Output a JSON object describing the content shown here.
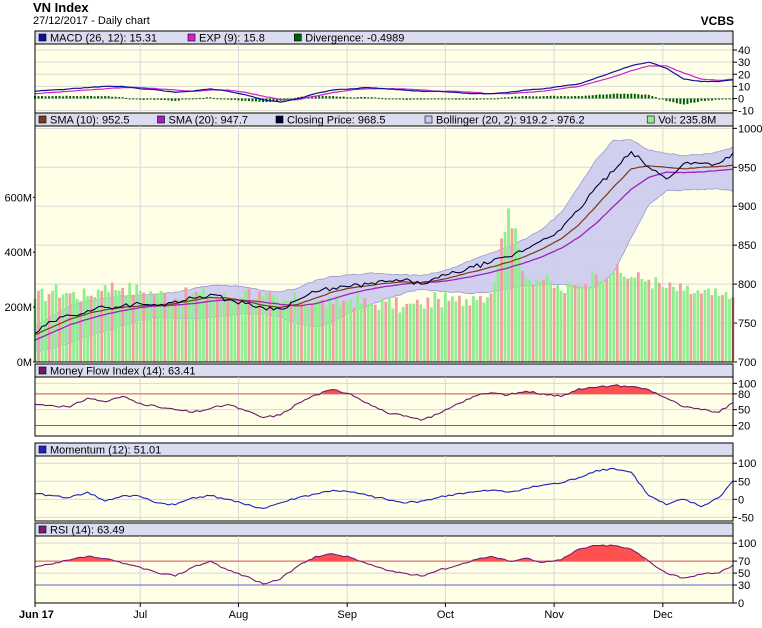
{
  "header": {
    "title": "VN Index",
    "subtitle": "27/12/2017 - Daily chart",
    "broker": "VCBS"
  },
  "colors": {
    "plot_bg": "#ffffe8",
    "legend_bg": "#dcdcf0",
    "price_line": "#000033",
    "sma10": "#7a3a1a",
    "sma20": "#a020c0",
    "bollinger_fill": "#c8c8f0",
    "bollinger_edge": "#8888cc",
    "macd": "#1010a0",
    "exp": "#d020d0",
    "divergence": "#006000",
    "mfi": "#6a1a6a",
    "momentum": "#2020c0",
    "rsi": "#7a1a7a",
    "overbought_fill": "#ff5050",
    "ref_line_upper": "#e05050",
    "ref_line_lower": "#6060d0",
    "vol_up": "#90ee90",
    "vol_down": "#f0a0a0"
  },
  "chart_data": [
    {
      "type": "bar",
      "panel": "macd",
      "legend": [
        {
          "label": "MACD (26, 12): 15.31",
          "color": "#1010a0"
        },
        {
          "label": "EXP (9): 15.8",
          "color": "#d020d0"
        },
        {
          "label": "Divergence: -0.4989",
          "color": "#006000"
        }
      ],
      "ylim": [
        -12,
        45
      ],
      "yticks": [
        "40",
        "30",
        "20",
        "10",
        "0",
        "-10"
      ],
      "ytick_values": [
        40,
        30,
        20,
        10,
        0,
        -10
      ],
      "x": [
        0,
        5,
        10,
        15,
        20,
        25,
        30,
        35,
        40,
        45,
        50,
        55,
        60,
        65,
        70,
        75,
        80,
        85,
        90,
        95,
        100,
        105,
        110,
        115,
        120,
        125,
        130,
        135,
        140,
        145,
        150,
        155,
        160,
        165,
        170,
        175,
        180,
        185,
        190,
        195,
        199
      ],
      "series": [
        {
          "key": "macd",
          "values": [
            6,
            7,
            8,
            9,
            10,
            10,
            8,
            7,
            5,
            6,
            8,
            6,
            3,
            -1,
            -3,
            0,
            4,
            7,
            8,
            9,
            8,
            7,
            6,
            6,
            5,
            4,
            4,
            5,
            7,
            8,
            10,
            12,
            17,
            22,
            27,
            30,
            25,
            16,
            14,
            14,
            15.31
          ]
        },
        {
          "key": "exp",
          "values": [
            4,
            5,
            6,
            7,
            8,
            9,
            9,
            8,
            7,
            6,
            7,
            7,
            5,
            2,
            -1,
            -1,
            2,
            5,
            7,
            8,
            8,
            8,
            7,
            6,
            6,
            5,
            4,
            4,
            5,
            6,
            8,
            10,
            14,
            18,
            23,
            27,
            27,
            21,
            16,
            15,
            15.8
          ]
        },
        {
          "key": "divergence",
          "values": [
            2,
            2,
            2,
            2,
            2,
            1,
            -1,
            -1,
            -2,
            0,
            1,
            -1,
            -2,
            -3,
            -2,
            1,
            2,
            2,
            1,
            1,
            0,
            -1,
            -1,
            0,
            -1,
            -1,
            0,
            1,
            2,
            2,
            2,
            2,
            3,
            4,
            4,
            3,
            -2,
            -5,
            -2,
            -1,
            -0.4989
          ]
        }
      ]
    },
    {
      "type": "line",
      "panel": "price",
      "legend": [
        {
          "label": "SMA (10): 952.5",
          "color": "#7a3a1a"
        },
        {
          "label": "SMA (20): 947.7",
          "color": "#a020c0"
        },
        {
          "label": "Closing Price: 968.5",
          "color": "#000033"
        },
        {
          "label": "Bollinger (20, 2): 919.2 - 976.2",
          "color": "#c8c8f0"
        },
        {
          "label": "Vol: 235.8M",
          "color": "#90ee90"
        }
      ],
      "ylim": [
        700,
        1003
      ],
      "yticks": [
        "1000",
        "950",
        "900",
        "850",
        "800",
        "750",
        "700"
      ],
      "ytick_values": [
        1000,
        950,
        900,
        850,
        800,
        750,
        700
      ],
      "vol_ylim": [
        0,
        860
      ],
      "vol_ticks": [
        "600M",
        "400M",
        "200M",
        "0M"
      ],
      "vol_tick_values": [
        600,
        400,
        200,
        0
      ],
      "x": [
        0,
        5,
        10,
        15,
        20,
        25,
        30,
        35,
        40,
        45,
        50,
        55,
        60,
        65,
        70,
        75,
        80,
        85,
        90,
        95,
        100,
        105,
        110,
        115,
        120,
        125,
        130,
        135,
        140,
        145,
        150,
        155,
        160,
        165,
        170,
        175,
        180,
        185,
        190,
        195,
        199
      ],
      "series": [
        {
          "key": "close",
          "values": [
            737,
            752,
            760,
            766,
            770,
            772,
            775,
            772,
            778,
            782,
            787,
            780,
            775,
            770,
            768,
            780,
            790,
            795,
            797,
            800,
            803,
            805,
            800,
            808,
            815,
            822,
            828,
            835,
            845,
            858,
            870,
            895,
            925,
            945,
            970,
            950,
            935,
            955,
            955,
            955,
            968.5
          ]
        },
        {
          "key": "sma10",
          "values": [
            735,
            745,
            755,
            762,
            767,
            770,
            772,
            773,
            775,
            779,
            783,
            782,
            778,
            773,
            770,
            774,
            782,
            790,
            795,
            798,
            801,
            803,
            802,
            805,
            810,
            816,
            822,
            828,
            836,
            846,
            858,
            876,
            900,
            925,
            948,
            952,
            950,
            948,
            950,
            951,
            952.5
          ]
        },
        {
          "key": "sma20",
          "values": [
            728,
            738,
            748,
            755,
            761,
            766,
            770,
            772,
            773,
            775,
            778,
            780,
            779,
            777,
            774,
            772,
            775,
            781,
            788,
            793,
            797,
            800,
            802,
            803,
            806,
            810,
            815,
            821,
            828,
            836,
            846,
            860,
            878,
            900,
            922,
            937,
            944,
            943,
            944,
            946,
            947.7
          ]
        },
        {
          "key": "bb_upper",
          "values": [
            745,
            760,
            772,
            778,
            782,
            785,
            786,
            787,
            790,
            794,
            798,
            798,
            796,
            792,
            790,
            795,
            805,
            810,
            812,
            814,
            813,
            812,
            811,
            815,
            822,
            832,
            840,
            848,
            858,
            872,
            892,
            925,
            960,
            985,
            985,
            972,
            968,
            965,
            966,
            970,
            976.2
          ]
        },
        {
          "key": "bb_lower",
          "values": [
            712,
            718,
            725,
            733,
            740,
            747,
            754,
            757,
            756,
            756,
            757,
            760,
            762,
            762,
            758,
            749,
            745,
            752,
            764,
            772,
            781,
            788,
            793,
            791,
            790,
            788,
            790,
            794,
            798,
            800,
            800,
            795,
            796,
            815,
            860,
            902,
            920,
            921,
            922,
            922,
            919.2
          ]
        },
        {
          "key": "volume",
          "values": [
            230,
            260,
            250,
            240,
            280,
            270,
            260,
            250,
            230,
            250,
            240,
            230,
            260,
            240,
            210,
            230,
            220,
            210,
            230,
            210,
            220,
            200,
            210,
            230,
            220,
            240,
            250,
            560,
            310,
            300,
            260,
            280,
            320,
            330,
            310,
            300,
            270,
            260,
            250,
            240,
            235.8
          ]
        }
      ]
    },
    {
      "type": "line",
      "panel": "mfi",
      "legend": [
        {
          "label": "Money Flow Index (14): 63.41",
          "color": "#6a1a6a"
        }
      ],
      "ylim": [
        0,
        112
      ],
      "yticks": [
        "100",
        "80",
        "50",
        "20"
      ],
      "ytick_values": [
        100,
        80,
        50,
        20
      ],
      "ref_lines": [
        80,
        20
      ],
      "x": [
        0,
        5,
        10,
        15,
        20,
        25,
        30,
        35,
        40,
        45,
        50,
        55,
        60,
        65,
        70,
        75,
        80,
        85,
        90,
        95,
        100,
        105,
        110,
        115,
        120,
        125,
        130,
        135,
        140,
        145,
        150,
        155,
        160,
        165,
        170,
        175,
        180,
        185,
        190,
        195,
        199
      ],
      "series": [
        {
          "key": "mfi",
          "values": [
            60,
            58,
            55,
            72,
            65,
            75,
            62,
            55,
            50,
            45,
            52,
            60,
            48,
            35,
            40,
            62,
            78,
            88,
            80,
            62,
            45,
            38,
            30,
            42,
            60,
            75,
            82,
            78,
            85,
            80,
            75,
            90,
            92,
            96,
            94,
            88,
            72,
            55,
            50,
            45,
            63.41
          ]
        }
      ]
    },
    {
      "type": "line",
      "panel": "momentum",
      "legend": [
        {
          "label": "Momentum (12): 51.01",
          "color": "#2020c0"
        }
      ],
      "ylim": [
        -60,
        120
      ],
      "yticks": [
        "100",
        "50",
        "0",
        "-50"
      ],
      "ytick_values": [
        100,
        50,
        0,
        -50
      ],
      "x": [
        0,
        5,
        10,
        15,
        20,
        25,
        30,
        35,
        40,
        45,
        50,
        55,
        60,
        65,
        70,
        75,
        80,
        85,
        90,
        95,
        100,
        105,
        110,
        115,
        120,
        125,
        130,
        135,
        140,
        145,
        150,
        155,
        160,
        165,
        170,
        175,
        180,
        185,
        190,
        195,
        199
      ],
      "series": [
        {
          "key": "momentum",
          "values": [
            15,
            10,
            5,
            20,
            -5,
            10,
            8,
            -10,
            -15,
            5,
            10,
            0,
            -15,
            -25,
            -10,
            5,
            15,
            25,
            20,
            10,
            0,
            -10,
            -5,
            5,
            15,
            20,
            25,
            20,
            30,
            40,
            45,
            60,
            80,
            85,
            75,
            10,
            -15,
            0,
            -20,
            5,
            51.01
          ]
        }
      ]
    },
    {
      "type": "line",
      "panel": "rsi",
      "legend": [
        {
          "label": "RSI (14): 63.49",
          "color": "#7a1a7a"
        }
      ],
      "ylim": [
        0,
        112
      ],
      "yticks": [
        "100",
        "70",
        "50",
        "30",
        "0"
      ],
      "ytick_values": [
        100,
        70,
        50,
        30,
        0
      ],
      "ref_lines": [
        70,
        30
      ],
      "x": [
        0,
        5,
        10,
        15,
        20,
        25,
        30,
        35,
        40,
        45,
        50,
        55,
        60,
        65,
        70,
        75,
        80,
        85,
        90,
        95,
        100,
        105,
        110,
        115,
        120,
        125,
        130,
        135,
        140,
        145,
        150,
        155,
        160,
        165,
        170,
        175,
        180,
        185,
        190,
        195,
        199
      ],
      "series": [
        {
          "key": "rsi",
          "values": [
            60,
            65,
            72,
            78,
            74,
            66,
            60,
            50,
            45,
            60,
            70,
            55,
            45,
            32,
            40,
            62,
            78,
            82,
            76,
            65,
            55,
            50,
            45,
            55,
            62,
            72,
            78,
            70,
            75,
            68,
            72,
            90,
            96,
            96,
            90,
            70,
            50,
            42,
            48,
            50,
            63.49
          ]
        }
      ]
    }
  ],
  "x_axis": {
    "labels": [
      "Jun 17",
      "Jul",
      "Aug",
      "Sep",
      "Oct",
      "Nov",
      "Dec"
    ],
    "label_x": [
      0,
      30,
      58,
      89,
      117,
      148,
      179
    ],
    "x_max": 199
  }
}
